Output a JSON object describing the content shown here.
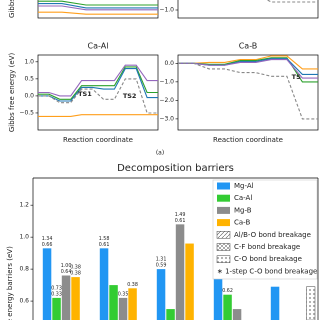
{
  "caption": "(a)",
  "chart_data": [
    {
      "type": "line",
      "y_label": "Gibbs",
      "x": [
        0,
        1,
        2,
        3,
        4,
        5
      ],
      "xlim": [
        0,
        5
      ],
      "ylim": [
        0,
        1
      ],
      "series": [
        {
          "color": "#2ca02c",
          "values": [
            0.35,
            0.35,
            0.27,
            0.27,
            0.27,
            0.27
          ]
        },
        {
          "color": "#1f77b4",
          "values": [
            0.3,
            0.3,
            0.21,
            0.21,
            0.21,
            0.21
          ]
        },
        {
          "color": "#9467bd",
          "values": [
            0.25,
            0.25,
            0.17,
            0.17,
            0.17,
            0.17
          ]
        },
        {
          "color": "#ff9f1c",
          "values": [
            0.12,
            0.12,
            0.08,
            0.08,
            0.08,
            0.08
          ]
        }
      ]
    },
    {
      "type": "line",
      "x": [
        0,
        1,
        2,
        3
      ],
      "xlim": [
        0,
        3
      ],
      "ylim": [
        -1.2,
        0
      ],
      "yticks": [
        {
          "value": -1,
          "label": "−1.0"
        }
      ],
      "series": [
        {
          "color": "#888888",
          "dashed": true,
          "values": [
            -0.2,
            -0.2,
            -0.8,
            -0.8
          ]
        }
      ]
    },
    {
      "type": "line",
      "title": "Ca-Al",
      "y_label": "Gibbs free energy (eV)",
      "x_label": "Reaction coordinate",
      "x": [
        0,
        1,
        2,
        3,
        4,
        5,
        6,
        7,
        8,
        9,
        10,
        11
      ],
      "xlim": [
        0,
        11
      ],
      "ylim": [
        -1,
        1.2
      ],
      "yticks": [
        {
          "value": -0.5,
          "label": "−0.5"
        },
        {
          "value": 0,
          "label": "0.0"
        },
        0.5,
        {
          "value": 1,
          "label": "1.0"
        }
      ],
      "series": [
        {
          "color": "#9467bd",
          "values": [
            0.1,
            0.1,
            0.0,
            0.0,
            0.45,
            0.45,
            0.45,
            0.45,
            0.9,
            0.9,
            0.45,
            0.45
          ]
        },
        {
          "color": "#2ca02c",
          "values": [
            0.05,
            0.05,
            -0.1,
            -0.1,
            0.3,
            0.3,
            0.3,
            0.3,
            0.85,
            0.85,
            0.1,
            0.1
          ]
        },
        {
          "color": "#1f77b4",
          "values": [
            0.0,
            0.0,
            -0.15,
            -0.15,
            0.25,
            0.25,
            0.2,
            0.2,
            0.8,
            0.8,
            -0.05,
            -0.05
          ]
        },
        {
          "color": "#888888",
          "dashed": true,
          "values": [
            0.0,
            0.0,
            -0.2,
            -0.2,
            0.2,
            0.2,
            -0.1,
            -0.1,
            0.5,
            0.5,
            -0.5,
            -0.5
          ]
        },
        {
          "color": "#ff9f1c",
          "values": [
            -0.6,
            -0.6,
            -0.6,
            -0.6,
            -0.55,
            -0.55,
            -0.55,
            -0.55,
            -0.55,
            -0.55,
            -0.55,
            -0.55
          ]
        }
      ],
      "annotations": [
        {
          "text": "TS1",
          "x": 4.3,
          "y": 0.05
        },
        {
          "text": "TS2",
          "x": 8.4,
          "y": 0.0
        }
      ]
    },
    {
      "type": "line",
      "title": "Ca-B",
      "x_label": "Reaction coordinate",
      "x": [
        0,
        1,
        2,
        3,
        4,
        5,
        6,
        7,
        8,
        9
      ],
      "xlim": [
        0,
        9
      ],
      "ylim": [
        -3.6,
        0.45
      ],
      "yticks": [
        {
          "value": -3,
          "label": "−3.0"
        },
        {
          "value": -2,
          "label": "−2.0"
        },
        {
          "value": -1,
          "label": "−1.0"
        },
        {
          "value": 0,
          "label": "0.0"
        }
      ],
      "series": [
        {
          "color": "#ff9f1c",
          "values": [
            0,
            0,
            0.05,
            0.05,
            0.2,
            0.2,
            0.4,
            0.4,
            -0.3,
            -0.3
          ]
        },
        {
          "color": "#2ca02c",
          "values": [
            0,
            0,
            -0.05,
            -0.05,
            0.15,
            0.15,
            0.3,
            0.3,
            -1.0,
            -1.0
          ]
        },
        {
          "color": "#1f77b4",
          "values": [
            0,
            0,
            -0.1,
            -0.1,
            0.1,
            0.1,
            0.25,
            0.25,
            -0.6,
            -0.6
          ]
        },
        {
          "color": "#9467bd",
          "values": [
            0,
            0,
            -0.1,
            -0.1,
            0.05,
            0.05,
            0.2,
            0.2,
            -0.8,
            -0.8
          ]
        },
        {
          "color": "#888888",
          "dashed": true,
          "values": [
            0,
            0,
            -0.3,
            -0.3,
            -0.5,
            -0.5,
            -0.7,
            -0.7,
            -3.0,
            -3.0
          ]
        }
      ],
      "annotations": [
        {
          "text": "TS",
          "x": 7.6,
          "y": -0.75
        }
      ]
    },
    {
      "type": "bar",
      "title": "Decomposition barriers",
      "y_label": "Free energy barriers (eV)",
      "categories": [
        null,
        null,
        null,
        null,
        null
      ],
      "ylim": [
        0,
        1.37
      ],
      "yticks": [
        0.6,
        0.8,
        {
          "value": 1,
          "label": "1.0"
        },
        1.2
      ],
      "series": [
        {
          "name": "Mg-Al",
          "color": "#2196f3",
          "values": [
            0.93,
            0.93,
            0.8,
            0.98,
            0.69
          ],
          "value_labels": [
            [
              "1.34",
              "0.66"
            ],
            [
              "1.58",
              "0.61"
            ],
            [
              "1.31",
              "0.59"
            ],
            [
              "1.26",
              "0.65"
            ],
            null
          ]
        },
        {
          "name": "Ca-Al",
          "color": "#33cc33",
          "values": [
            0.62,
            0.7,
            0.55,
            0.64,
            null
          ],
          "value_labels": [
            [
              "0.73",
              "0.33"
            ],
            null,
            null,
            [
              "0.62"
            ],
            null
          ]
        },
        {
          "name": "Mg-B",
          "color": "#8c8c8c",
          "values": [
            0.76,
            0.62,
            1.08,
            0.55,
            null
          ],
          "value_labels": [
            [
              "1.00",
              "0.64"
            ],
            [
              "0.35"
            ],
            [
              "1.49",
              "0.61"
            ],
            null,
            null
          ]
        },
        {
          "name": "Ca-B",
          "color": "#ffb300",
          "values": [
            0.75,
            0.68,
            0.96,
            0.4,
            null
          ],
          "value_labels": [
            [
              "0.38",
              "0.38"
            ],
            [
              "0.38"
            ],
            null,
            null,
            null
          ]
        },
        {
          "name": "Al/B-O bond breakage",
          "hatch": "diagonal",
          "values": [
            null,
            null,
            null,
            null,
            null
          ]
        },
        {
          "name": "C-F bond breakage",
          "hatch": "cross",
          "values": [
            null,
            null,
            null,
            null,
            null
          ]
        },
        {
          "name": "C-O bond breakage",
          "hatch": "dots",
          "values": [
            null,
            null,
            null,
            null,
            0.69
          ]
        }
      ],
      "legend_note": "∗ 1-step C-O bond breakage",
      "legend_note_color": "#1f5fd6",
      "legend": "upper right"
    }
  ]
}
